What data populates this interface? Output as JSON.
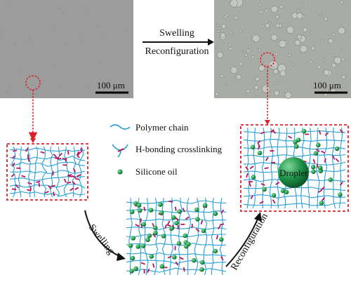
{
  "top_arrow": {
    "line1": "Swelling",
    "line2": "Reconfiguration"
  },
  "scale_bars": {
    "left": "100 μm",
    "right": "100 μm"
  },
  "legend": {
    "polymer_chain": "Polymer chain",
    "crosslinking": "H-bonding crosslinking",
    "silicone_oil": "Silicone oil"
  },
  "arrows": {
    "swelling": "Swelling",
    "reconfiguration": "Reconfiguration"
  },
  "droplet_label": "Droplet",
  "colors": {
    "chain": "#2a9fd6",
    "crosslink": "#b8145a",
    "oil": "#1f9a4a",
    "dashed_box": "#d9232d",
    "micrograph_left": "#9c9c9c",
    "micrograph_right": "#a9aba6"
  }
}
